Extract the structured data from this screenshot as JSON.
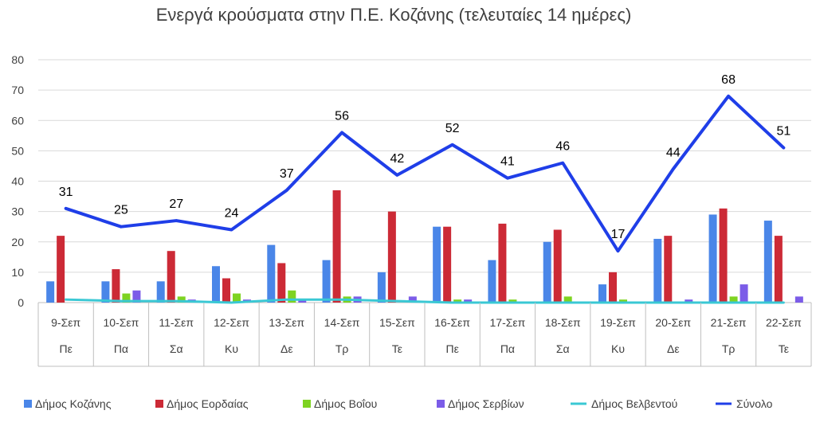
{
  "chart_data": {
    "type": "bar",
    "title": "Ενεργά κρούσματα στην Π.Ε. Κοζάνης (τελευταίες 14 ημέρες)",
    "categories": [
      "9-Σεπ",
      "10-Σεπ",
      "11-Σεπ",
      "12-Σεπ",
      "13-Σεπ",
      "14-Σεπ",
      "15-Σεπ",
      "16-Σεπ",
      "17-Σεπ",
      "18-Σεπ",
      "19-Σεπ",
      "20-Σεπ",
      "21-Σεπ",
      "22-Σεπ"
    ],
    "day_labels": [
      "Πε",
      "Πα",
      "Σα",
      "Κυ",
      "Δε",
      "Τρ",
      "Τε",
      "Πε",
      "Πα",
      "Σα",
      "Κυ",
      "Δε",
      "Τρ",
      "Τε"
    ],
    "ylim": [
      0,
      80
    ],
    "yticks": [
      0,
      10,
      20,
      30,
      40,
      50,
      60,
      70,
      80
    ],
    "grid": true,
    "legend_position": "bottom",
    "series": [
      {
        "name": "Δήμος Κοζάνης",
        "kind": "bar",
        "color": "#4a86e8",
        "values": [
          7,
          7,
          7,
          12,
          19,
          14,
          10,
          25,
          14,
          20,
          6,
          21,
          29,
          27
        ]
      },
      {
        "name": "Δήμος Εορδαίας",
        "kind": "bar",
        "color": "#cc2a36",
        "values": [
          22,
          11,
          17,
          8,
          13,
          37,
          30,
          25,
          26,
          24,
          10,
          22,
          31,
          22
        ]
      },
      {
        "name": "Δήμος Βοΐου",
        "kind": "bar",
        "color": "#7ed321",
        "values": [
          0,
          3,
          2,
          3,
          4,
          2,
          0,
          1,
          1,
          2,
          1,
          0,
          2,
          0
        ]
      },
      {
        "name": "Δήμος Σερβίων",
        "kind": "bar",
        "color": "#7b5ce8",
        "values": [
          0,
          4,
          1,
          1,
          1,
          2,
          2,
          1,
          0,
          0,
          0,
          1,
          6,
          2
        ]
      },
      {
        "name": "Δήμος Βελβεντού",
        "kind": "line",
        "color": "#3ac8d4",
        "values": [
          1,
          0.5,
          0.5,
          0,
          1,
          1,
          0.5,
          0,
          0,
          0,
          0,
          0,
          0,
          0
        ]
      },
      {
        "name": "Σύνολο",
        "kind": "line",
        "color": "#1f3ee8",
        "values": [
          31,
          25,
          27,
          24,
          37,
          56,
          42,
          52,
          41,
          46,
          17,
          44,
          68,
          51
        ],
        "show_labels": true
      }
    ]
  }
}
